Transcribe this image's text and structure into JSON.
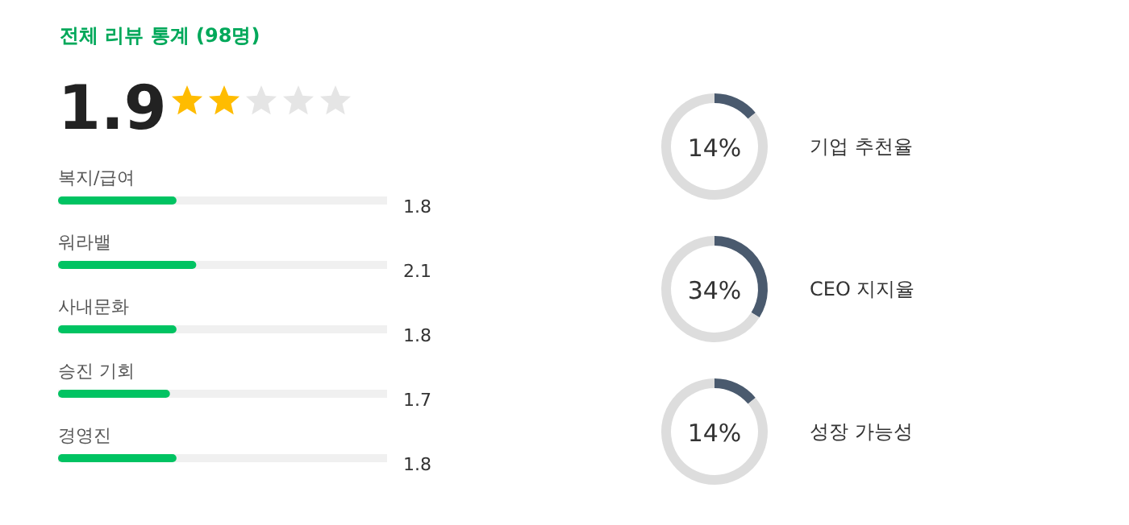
{
  "chart_data": [
    {
      "type": "other",
      "title": "전체 리뷰 통계 (98명)",
      "annotations": [
        "1.9"
      ]
    },
    {
      "type": "bar",
      "orientation": "horizontal",
      "categories": [
        "복지/급여",
        "워라밸",
        "사내문화",
        "승진 기회",
        "경영진"
      ],
      "values": [
        1.8,
        2.1,
        1.8,
        1.7,
        1.8
      ],
      "color": "#00c362",
      "xlim": [
        0,
        5
      ],
      "data_labels": true,
      "tick_labels": "y"
    },
    {
      "type": "donut",
      "title": "기업 추천율",
      "categories": [
        null,
        null
      ],
      "values": [
        14,
        86
      ],
      "colors": [
        "#4a5a6e",
        "#dddddd"
      ],
      "annotations": [
        "14%"
      ]
    },
    {
      "type": "donut",
      "title": "CEO 지지율",
      "categories": [
        null,
        null
      ],
      "values": [
        34,
        66
      ],
      "colors": [
        "#4a5a6e",
        "#dddddd"
      ],
      "annotations": [
        "34%"
      ]
    },
    {
      "type": "donut",
      "title": "성장 가능성",
      "categories": [
        null,
        null
      ],
      "values": [
        14,
        86
      ],
      "colors": [
        "#4a5a6e",
        "#dddddd"
      ],
      "annotations": [
        "14%"
      ]
    }
  ]
}
